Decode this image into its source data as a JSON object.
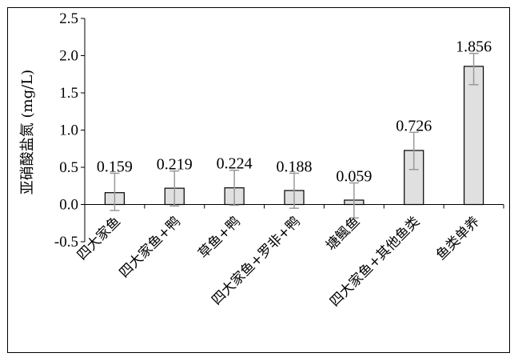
{
  "chart_data": {
    "type": "bar",
    "title": "",
    "xlabel": "",
    "ylabel": "亚硝酸盐氮 (mg/L)",
    "ylim": [
      -0.5,
      2.5
    ],
    "yticks": [
      "-0.5",
      "0.0",
      "0.5",
      "1.0",
      "1.5",
      "2.0",
      "2.5"
    ],
    "categories": [
      "四大家鱼",
      "四大家鱼+鸭",
      "草鱼+鸭",
      "四大家鱼+罗非+鸭",
      "塘鲺鱼",
      "四大家鱼+其他鱼类",
      "鱼类单养"
    ],
    "values": [
      0.159,
      0.219,
      0.224,
      0.188,
      0.059,
      0.726,
      1.856
    ],
    "value_labels": [
      "0.159",
      "0.219",
      "0.224",
      "0.188",
      "0.059",
      "0.726",
      "1.856"
    ],
    "error_lower": [
      -0.08,
      -0.02,
      -0.01,
      -0.05,
      -0.18,
      0.47,
      1.61
    ],
    "error_upper": [
      0.42,
      0.45,
      0.46,
      0.42,
      0.29,
      0.97,
      2.03
    ],
    "grid": false,
    "bar_color": "#e0e0e0",
    "error_color": "#999999"
  }
}
